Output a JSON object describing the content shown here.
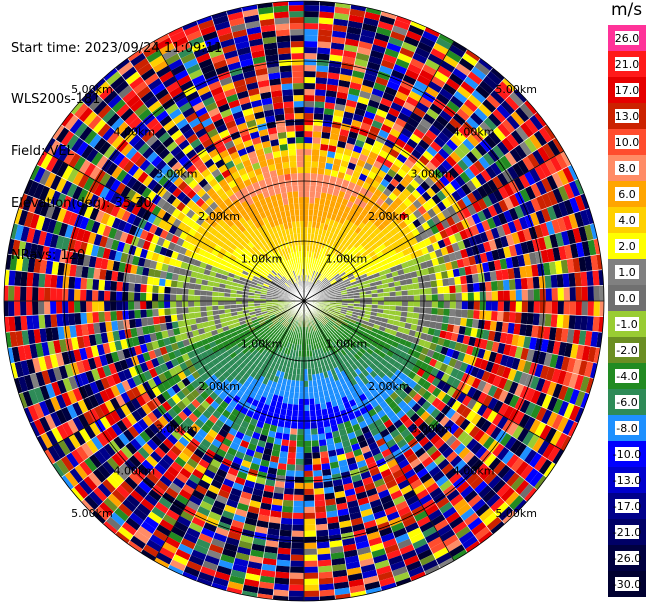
{
  "info": {
    "start_time": "Start time: 2023/09/24 11:09:11",
    "instrument": "WLS200s-181",
    "field": "Field: VEL",
    "elevation": "Elevation(deg): 35.30",
    "nrays": "NRays: 120"
  },
  "colorbar": {
    "unit": "m/s",
    "levels": [
      {
        "label": "26.0",
        "color": "#ff3399"
      },
      {
        "label": "21.0",
        "color": "#ff1a1a"
      },
      {
        "label": "17.0",
        "color": "#e60000"
      },
      {
        "label": "13.0",
        "color": "#cc2200"
      },
      {
        "label": "10.0",
        "color": "#ff4d2e"
      },
      {
        "label": "8.0",
        "color": "#ff8c66"
      },
      {
        "label": "6.0",
        "color": "#ffa500"
      },
      {
        "label": "4.0",
        "color": "#ffd000"
      },
      {
        "label": "2.0",
        "color": "#ffff00"
      },
      {
        "label": "1.0",
        "color": "#808080"
      },
      {
        "label": "0.0",
        "color": "#707070"
      },
      {
        "label": "-1.0",
        "color": "#99cc33"
      },
      {
        "label": "-2.0",
        "color": "#6b8e23"
      },
      {
        "label": "-4.0",
        "color": "#228b22"
      },
      {
        "label": "-6.0",
        "color": "#2e8b57"
      },
      {
        "label": "-8.0",
        "color": "#1e90ff"
      },
      {
        "label": "-10.0",
        "color": "#0000ff"
      },
      {
        "label": "-13.0",
        "color": "#0000cd"
      },
      {
        "label": "-17.0",
        "color": "#00008b"
      },
      {
        "label": "-21.0",
        "color": "#000066"
      },
      {
        "label": "-26.0",
        "color": "#000040"
      },
      {
        "label": "-30.0",
        "color": "#000030"
      }
    ]
  },
  "chart_data": {
    "type": "heatmap",
    "subtype": "polar PPI",
    "field": "VEL",
    "unit": "m/s",
    "nrays": 120,
    "range_ring_labels": [
      "1.00km",
      "2.00km",
      "3.00km",
      "4.00km",
      "5.00km"
    ],
    "ring_label_text": {
      "km1": "1.00km",
      "km2": "2.00km",
      "km3": "3.00km",
      "km4": "4.00km",
      "km5": "5.00km"
    },
    "pattern": "clean southerly/northerly wind within ~2 km: positive velocities (yellow/orange) to the north, negative (green) to the south, near-zero (gray) band across the middle; beyond ~3 km noisy random colors",
    "colormap_range": [
      -30,
      26
    ]
  }
}
